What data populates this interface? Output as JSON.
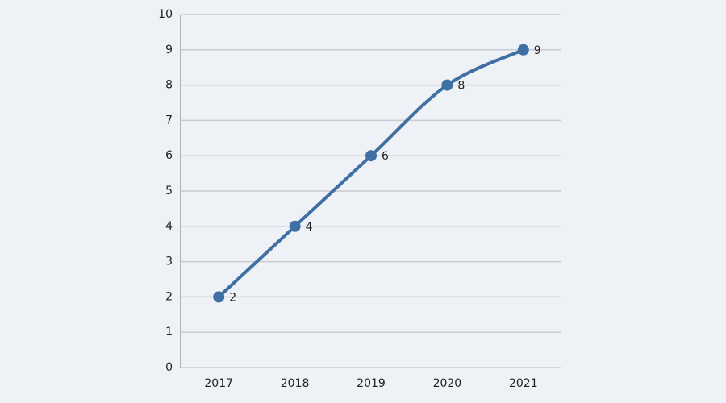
{
  "chart_data": {
    "type": "line",
    "categories": [
      "2017",
      "2018",
      "2019",
      "2020",
      "2021"
    ],
    "values": [
      2,
      4,
      6,
      8,
      9
    ],
    "color": "#3f6fa3",
    "ylim": [
      0,
      10
    ],
    "yticks": [
      0,
      1,
      2,
      3,
      4,
      5,
      6,
      7,
      8,
      9,
      10
    ],
    "grid": true
  }
}
